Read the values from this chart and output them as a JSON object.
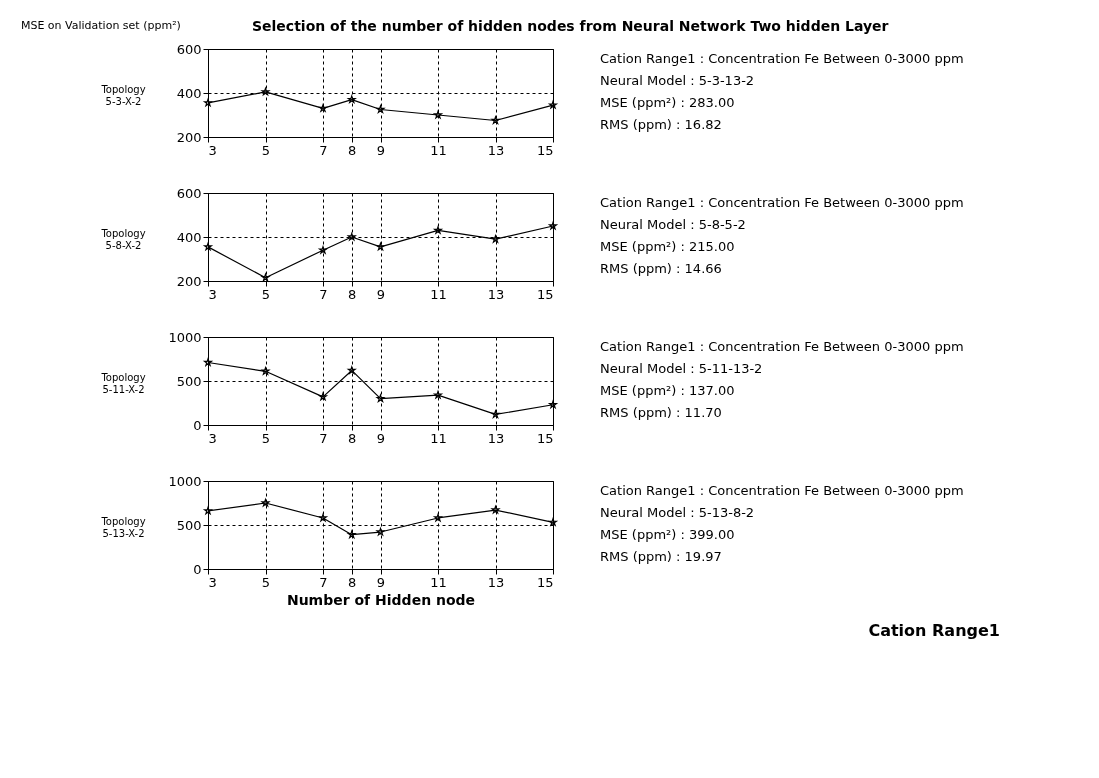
{
  "chart_data": [
    {
      "type": "line",
      "title": "Selection of the number of hidden nodes from Neural Network Two hidden Layer",
      "subtitle": "MSE on Validation set (ppm²)",
      "ylabel": "Topology\n5-3-X-2",
      "x": [
        3,
        5,
        7,
        8,
        9,
        11,
        13,
        15
      ],
      "xlim": [
        3,
        15
      ],
      "xticks": [
        3,
        5,
        7,
        8,
        9,
        11,
        13,
        15
      ],
      "ylim": [
        200,
        600
      ],
      "yticks": [
        200,
        400,
        600
      ],
      "grid": true,
      "marker": "star",
      "line_style": "solid",
      "series": [
        {
          "color": "#000000",
          "values": [
            355,
            405,
            330,
            370,
            325,
            300,
            275,
            345
          ]
        }
      ],
      "annotations": [
        "Cation Range1 : Concentration Fe Between 0-3000 ppm",
        "Neural Model   : 5-3-13-2",
        "MSE (ppm²)     : 283.00",
        "RMS (ppm)      : 16.82"
      ]
    },
    {
      "type": "line",
      "ylabel": "Topology\n5-8-X-2",
      "x": [
        3,
        5,
        7,
        8,
        9,
        11,
        13,
        15
      ],
      "xlim": [
        3,
        15
      ],
      "xticks": [
        3,
        5,
        7,
        8,
        9,
        11,
        13,
        15
      ],
      "ylim": [
        200,
        600
      ],
      "yticks": [
        200,
        400,
        600
      ],
      "grid": true,
      "marker": "star",
      "line_style": "solid",
      "series": [
        {
          "color": "#000000",
          "values": [
            355,
            215,
            340,
            400,
            355,
            430,
            390,
            450
          ]
        }
      ],
      "annotations": [
        "Cation Range1 : Concentration Fe Between 0-3000 ppm",
        "Neural Model   : 5-8-5-2",
        "MSE (ppm²)     : 215.00",
        "RMS (ppm)      : 14.66"
      ]
    },
    {
      "type": "line",
      "ylabel": "Topology\n5-11-X-2",
      "x": [
        3,
        5,
        7,
        8,
        9,
        11,
        13,
        15
      ],
      "xlim": [
        3,
        15
      ],
      "xticks": [
        3,
        5,
        7,
        8,
        9,
        11,
        13,
        15
      ],
      "ylim": [
        0,
        1000
      ],
      "yticks": [
        0,
        500,
        1000
      ],
      "grid": true,
      "marker": "star",
      "line_style": "solid",
      "series": [
        {
          "color": "#000000",
          "values": [
            710,
            610,
            320,
            620,
            300,
            340,
            120,
            230
          ]
        }
      ],
      "annotations": [
        "Cation Range1 : Concentration Fe Between 0-3000 ppm",
        "Neural Model   : 5-11-13-2",
        "MSE (ppm²)     : 137.00",
        "RMS (ppm)      : 11.70"
      ]
    },
    {
      "type": "line",
      "ylabel": "Topology\n5-13-X-2",
      "xlabel": "Number of Hidden node",
      "x": [
        3,
        5,
        7,
        8,
        9,
        11,
        13,
        15
      ],
      "xlim": [
        3,
        15
      ],
      "xticks": [
        3,
        5,
        7,
        8,
        9,
        11,
        13,
        15
      ],
      "ylim": [
        0,
        1000
      ],
      "yticks": [
        0,
        500,
        1000
      ],
      "grid": true,
      "marker": "star",
      "line_style": "solid",
      "series": [
        {
          "color": "#000000",
          "values": [
            660,
            750,
            580,
            390,
            420,
            580,
            670,
            530
          ]
        }
      ],
      "annotations": [
        "Cation Range1 : Concentration Fe Between 0-3000 ppm",
        "Neural Model   : 5-13-8-2",
        "MSE (ppm²)     : 399.00",
        "RMS (ppm)      : 19.97",
        "Cation Range1"
      ]
    }
  ]
}
